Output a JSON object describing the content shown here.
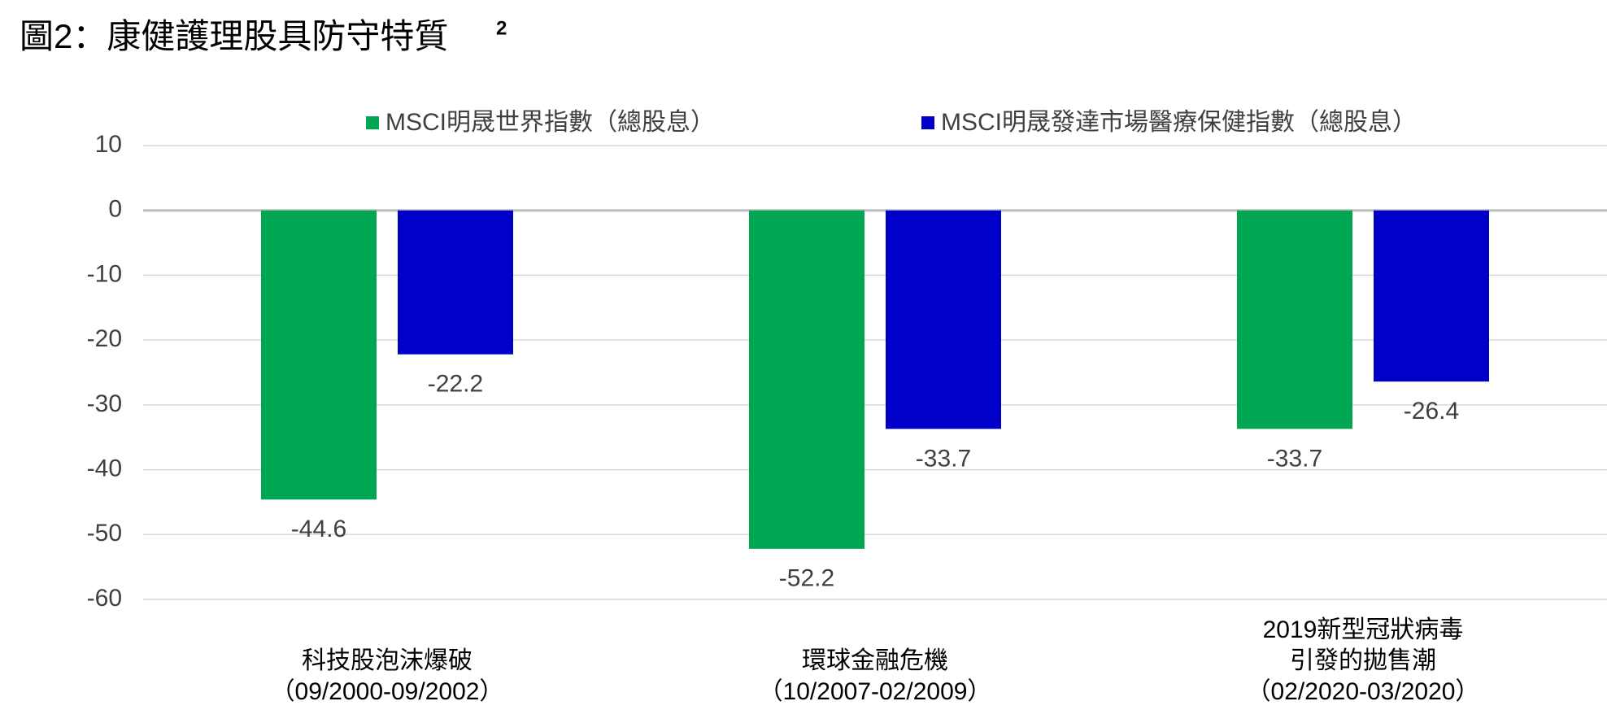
{
  "chart_data": {
    "type": "bar",
    "title": "圖2：康健護理股具防守特質",
    "title_note": "2",
    "categories": [
      [
        "科技股泡沫爆破",
        "（09/2000-09/2002）"
      ],
      [
        "環球金融危機",
        "（10/2007-02/2009）"
      ],
      [
        "2019新型冠狀病毒",
        "引發的拋售潮",
        "（02/2020-03/2020）"
      ]
    ],
    "series": [
      {
        "name": "MSCI明晟世界指數（總股息）",
        "color": "#00a651",
        "values": [
          -44.6,
          -52.2,
          -33.7
        ]
      },
      {
        "name": "MSCI明晟發達市場醫療保健指數（總股息）",
        "color": "#0000c8",
        "values": [
          -22.2,
          -33.7,
          -26.4
        ]
      }
    ],
    "ylim": [
      -60,
      10
    ],
    "yticks": [
      10,
      0,
      -10,
      -20,
      -30,
      -40,
      -50,
      -60
    ],
    "grid": true,
    "legend": "top"
  }
}
